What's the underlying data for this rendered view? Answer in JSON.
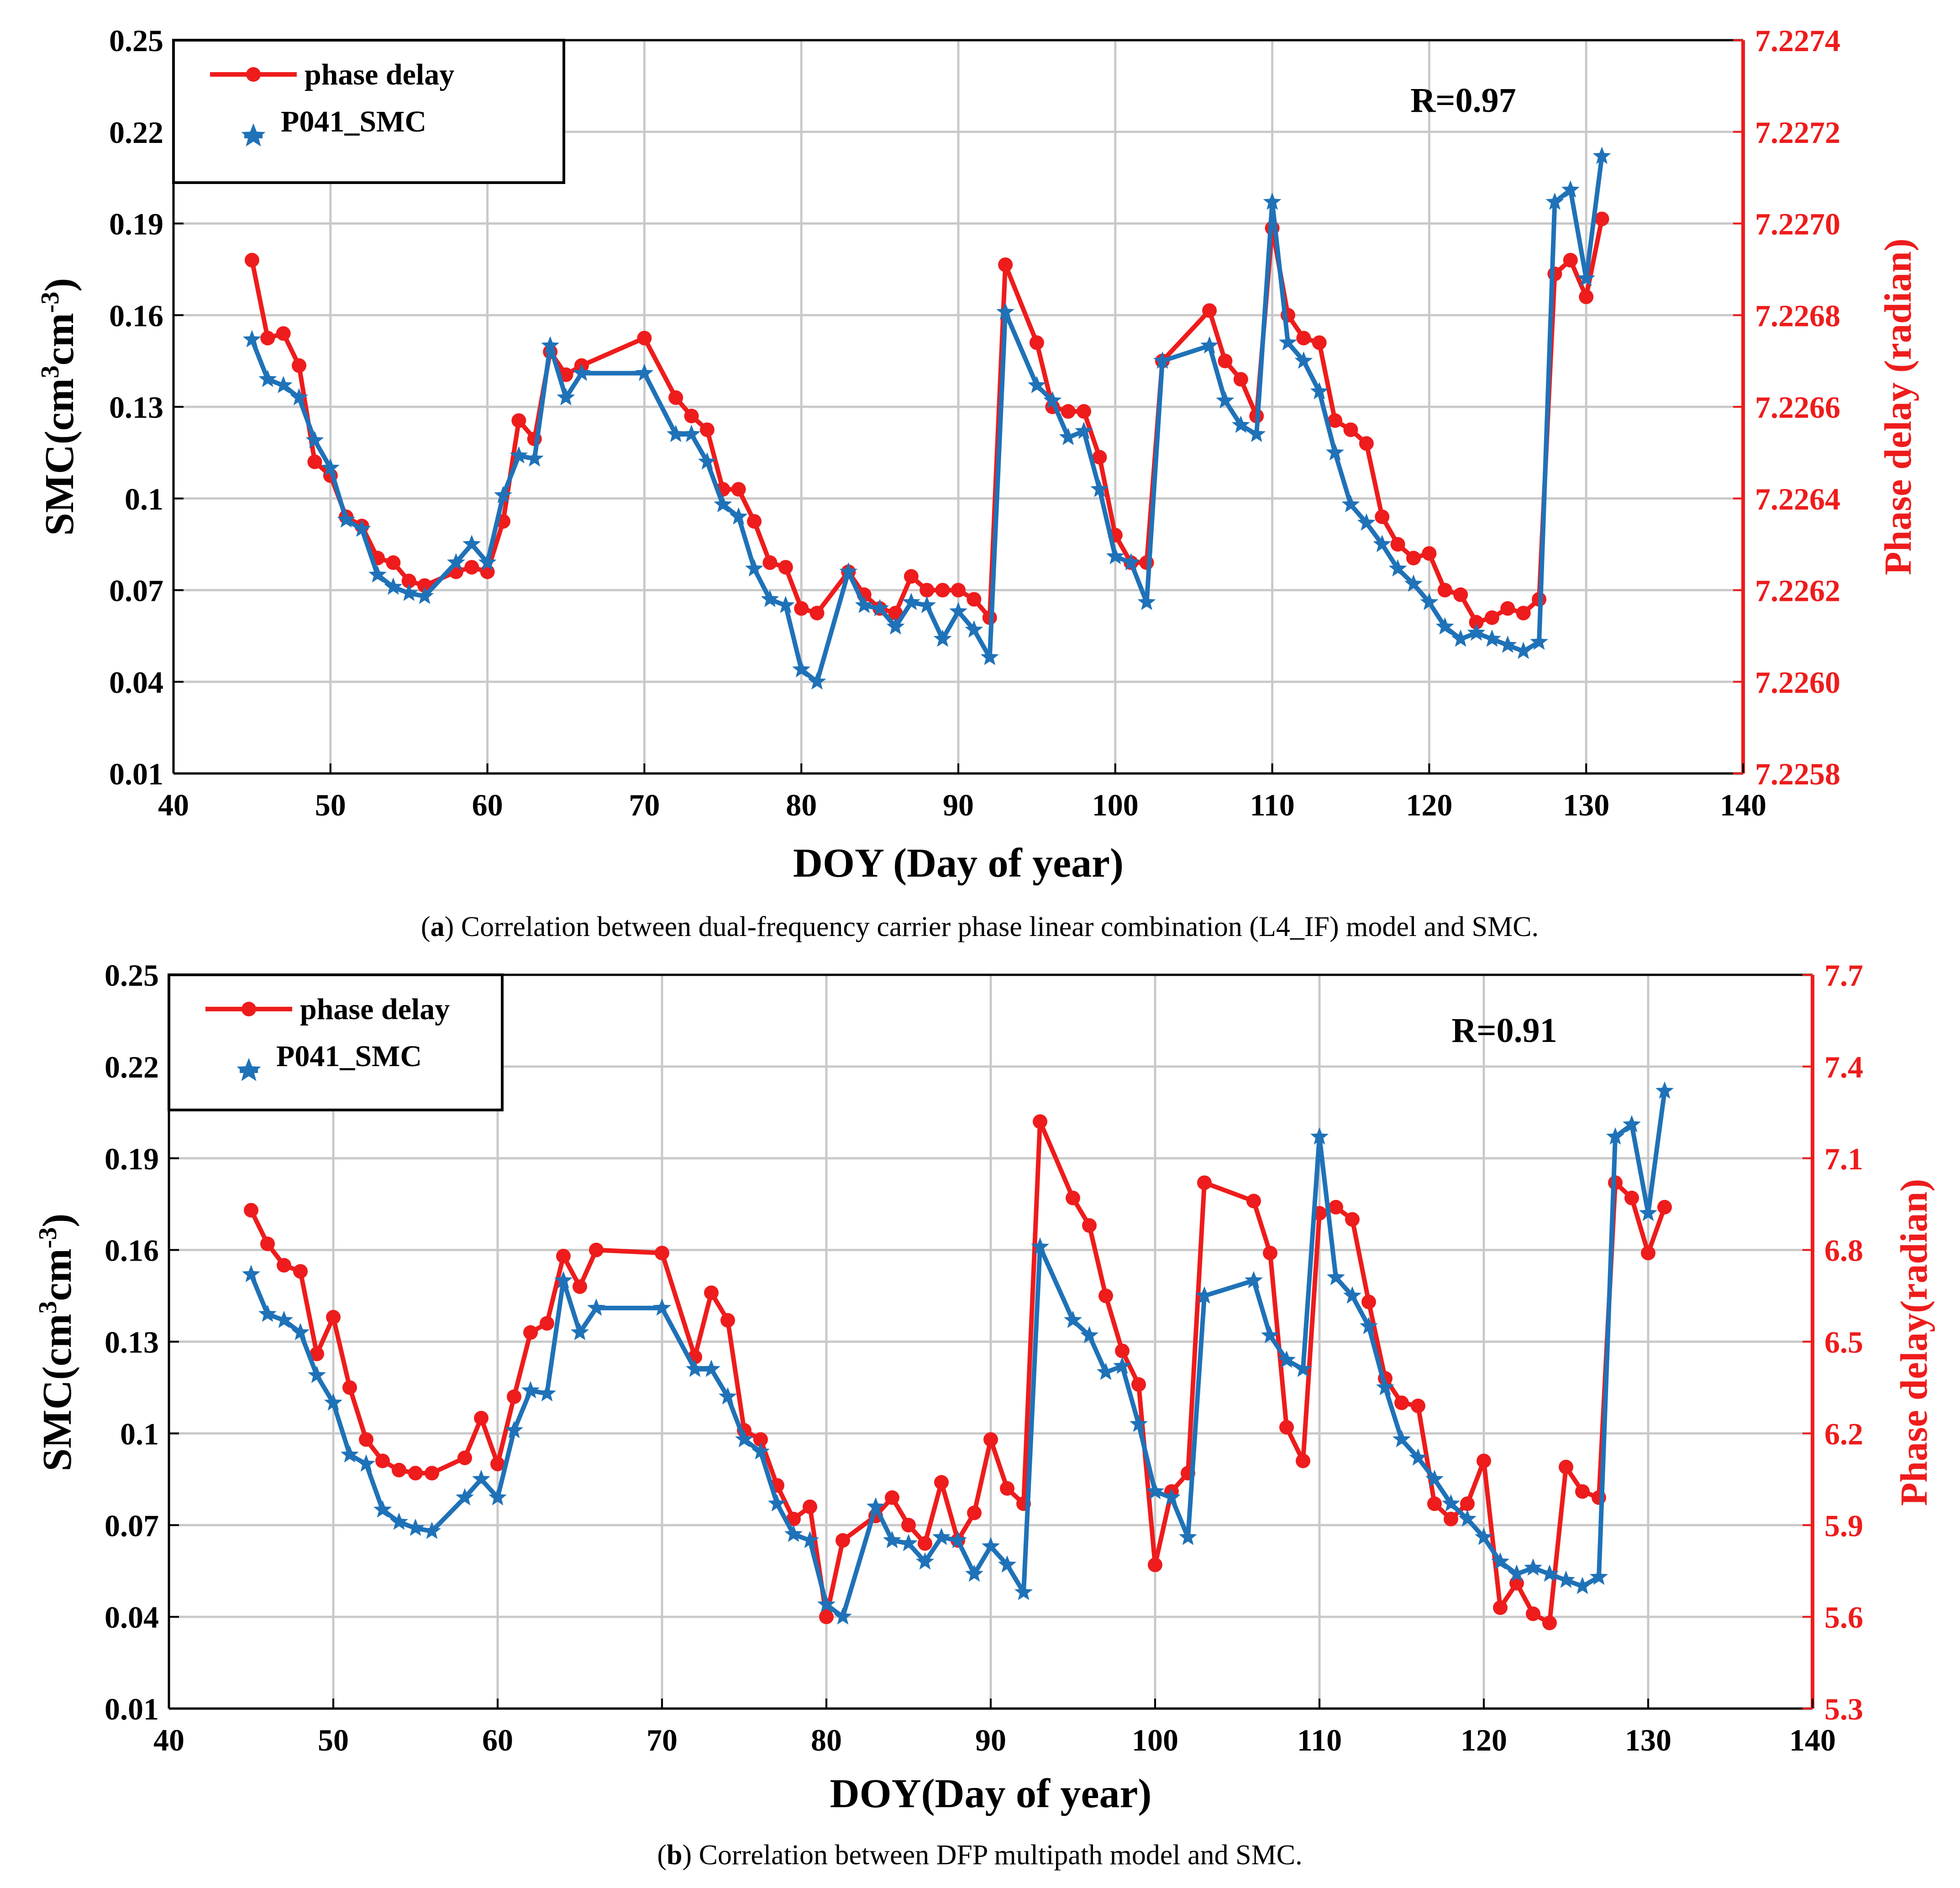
{
  "colors": {
    "red": "#ee1c1c",
    "blue": "#1f72b8",
    "grid": "#c9c9c9"
  },
  "chart_data": [
    {
      "id": "a",
      "type": "line",
      "xlabel": "DOY (Day of year)",
      "ylabel_left": "SMC(cm3cm-3)",
      "ylabel_right": "Phase delay (radian)",
      "xlim": [
        40,
        140
      ],
      "ylim_left": [
        0.01,
        0.25
      ],
      "ylim_right": [
        7.2258,
        7.2274
      ],
      "xticks": [
        "40",
        "50",
        "60",
        "70",
        "80",
        "90",
        "100",
        "110",
        "120",
        "130",
        "140"
      ],
      "yticks_left": [
        "0.01",
        "0.04",
        "0.07",
        "0.1",
        "0.13",
        "0.16",
        "0.19",
        "0.22",
        "0.25"
      ],
      "yticks_right": [
        "7.2258",
        "7.2260",
        "7.2262",
        "7.2264",
        "7.2266",
        "7.2268",
        "7.2270",
        "7.2272",
        "7.2274"
      ],
      "annotation": "R=0.97",
      "legend": {
        "position": "top-left",
        "entries": [
          "phase delay",
          "P041_SMC"
        ]
      },
      "caption": {
        "label": "a",
        "text": "Correlation between dual-frequency carrier phase linear combination (L4_IF) model and SMC."
      },
      "series": [
        {
          "name": "phase delay",
          "axis": "right",
          "color": "#ee1c1c",
          "marker": "circle",
          "x": [
            45,
            46,
            47,
            48,
            49,
            50,
            51,
            52,
            53,
            54,
            55,
            56,
            58,
            59,
            60,
            61,
            62,
            63,
            64,
            65,
            66,
            70,
            72,
            73,
            74,
            75,
            76,
            77,
            78,
            79,
            80,
            81,
            83,
            84,
            85,
            86,
            87,
            88,
            89,
            90,
            91,
            92,
            93,
            95,
            96,
            97,
            98,
            99,
            100,
            101,
            102,
            103,
            106,
            107,
            108,
            109,
            110,
            111,
            112,
            113,
            114,
            115,
            116,
            117,
            118,
            119,
            120,
            121,
            122,
            123,
            124,
            125,
            126,
            127,
            128,
            129,
            130,
            131
          ],
          "values": [
            7.22692,
            7.22675,
            7.22676,
            7.22669,
            7.22648,
            7.22645,
            7.22636,
            7.22634,
            7.22627,
            7.22626,
            7.22622,
            7.22621,
            7.22624,
            7.22625,
            7.22624,
            7.22635,
            7.22657,
            7.22653,
            7.22672,
            7.22667,
            7.22669,
            7.22675,
            7.22662,
            7.22658,
            7.22655,
            7.22642,
            7.22642,
            7.22635,
            7.22626,
            7.22625,
            7.22616,
            7.22615,
            7.22624,
            7.22619,
            7.22616,
            7.22615,
            7.22623,
            7.2262,
            7.2262,
            7.2262,
            7.22618,
            7.22614,
            7.22691,
            7.22674,
            7.2266,
            7.22659,
            7.22659,
            7.22649,
            7.22632,
            7.22626,
            7.22626,
            7.2267,
            7.22681,
            7.2267,
            7.22666,
            7.22658,
            7.22699,
            7.2268,
            7.22675,
            7.22674,
            7.22657,
            7.22655,
            7.22652,
            7.22636,
            7.2263,
            7.22627,
            7.22628,
            7.2262,
            7.22619,
            7.22613,
            7.22614,
            7.22616,
            7.22615,
            7.22618,
            7.22689,
            7.22692,
            7.22684,
            7.22701
          ]
        },
        {
          "name": "P041_SMC",
          "axis": "left",
          "color": "#1f72b8",
          "marker": "star",
          "x": [
            45,
            46,
            47,
            48,
            49,
            50,
            51,
            52,
            53,
            54,
            55,
            56,
            58,
            59,
            60,
            61,
            62,
            63,
            64,
            65,
            66,
            70,
            72,
            73,
            74,
            75,
            76,
            77,
            78,
            79,
            80,
            81,
            83,
            84,
            85,
            86,
            87,
            88,
            89,
            90,
            91,
            92,
            93,
            95,
            96,
            97,
            98,
            99,
            100,
            101,
            102,
            103,
            106,
            107,
            108,
            109,
            110,
            111,
            112,
            113,
            114,
            115,
            116,
            117,
            118,
            119,
            120,
            121,
            122,
            123,
            124,
            125,
            126,
            127,
            128,
            129,
            130,
            131
          ],
          "values": [
            0.152,
            0.139,
            0.137,
            0.133,
            0.119,
            0.11,
            0.093,
            0.09,
            0.075,
            0.071,
            0.069,
            0.068,
            0.079,
            0.085,
            0.079,
            0.101,
            0.114,
            0.113,
            0.15,
            0.133,
            0.141,
            0.141,
            0.121,
            0.121,
            0.112,
            0.098,
            0.094,
            0.077,
            0.067,
            0.065,
            0.044,
            0.04,
            0.076,
            0.065,
            0.064,
            0.058,
            0.066,
            0.065,
            0.054,
            0.063,
            0.057,
            0.048,
            0.161,
            0.137,
            0.132,
            0.12,
            0.122,
            0.103,
            0.081,
            0.079,
            0.066,
            0.145,
            0.15,
            0.132,
            0.124,
            0.121,
            0.197,
            0.151,
            0.145,
            0.135,
            0.115,
            0.098,
            0.092,
            0.085,
            0.077,
            0.072,
            0.066,
            0.058,
            0.054,
            0.056,
            0.054,
            0.052,
            0.05,
            0.053,
            0.197,
            0.201,
            0.172,
            0.212
          ]
        }
      ]
    },
    {
      "id": "b",
      "type": "line",
      "xlabel": "DOY(Day of year)",
      "ylabel_left": "SMC(cm3cm-3)",
      "ylabel_right": "Phase delay(radian)",
      "xlim": [
        40,
        140
      ],
      "ylim_left": [
        0.01,
        0.25
      ],
      "ylim_right": [
        5.3,
        7.7
      ],
      "xticks": [
        "40",
        "50",
        "60",
        "70",
        "80",
        "90",
        "100",
        "110",
        "120",
        "130",
        "140"
      ],
      "yticks_left": [
        "0.01",
        "0.04",
        "0.07",
        "0.1",
        "0.13",
        "0.16",
        "0.19",
        "0.22",
        "0.25"
      ],
      "yticks_right": [
        "5.3",
        "5.6",
        "5.9",
        "6.2",
        "6.5",
        "6.8",
        "7.1",
        "7.4",
        "7.7"
      ],
      "annotation": "R=0.91",
      "legend": {
        "position": "top-left",
        "entries": [
          "phase delay",
          "P041_SMC"
        ]
      },
      "caption": {
        "label": "b",
        "text": "Correlation between DFP multipath model and SMC."
      },
      "series": [
        {
          "name": "phase delay",
          "axis": "right",
          "color": "#ee1c1c",
          "marker": "circle",
          "x": [
            45,
            46,
            47,
            48,
            49,
            50,
            51,
            52,
            53,
            54,
            55,
            56,
            58,
            59,
            60,
            61,
            62,
            63,
            64,
            65,
            66,
            70,
            72,
            73,
            74,
            75,
            76,
            77,
            78,
            79,
            80,
            81,
            83,
            84,
            85,
            86,
            87,
            88,
            89,
            90,
            91,
            92,
            93,
            95,
            96,
            97,
            98,
            99,
            100,
            101,
            102,
            103,
            106,
            107,
            108,
            109,
            110,
            111,
            112,
            113,
            114,
            115,
            116,
            117,
            118,
            119,
            120,
            121,
            122,
            123,
            124,
            125,
            126,
            127,
            128,
            129,
            130,
            131
          ],
          "values": [
            6.93,
            6.82,
            6.75,
            6.73,
            6.46,
            6.58,
            6.35,
            6.18,
            6.11,
            6.08,
            6.07,
            6.07,
            6.12,
            6.25,
            6.1,
            6.32,
            6.53,
            6.56,
            6.78,
            6.68,
            6.8,
            6.79,
            6.45,
            6.66,
            6.57,
            6.21,
            6.18,
            6.03,
            5.92,
            5.96,
            5.6,
            5.85,
            5.93,
            5.99,
            5.9,
            5.84,
            6.04,
            5.85,
            5.94,
            6.18,
            6.02,
            5.97,
            7.22,
            6.97,
            6.88,
            6.65,
            6.47,
            6.36,
            5.77,
            6.01,
            6.07,
            7.02,
            6.96,
            6.79,
            6.22,
            6.11,
            6.92,
            6.94,
            6.9,
            6.63,
            6.38,
            6.3,
            6.29,
            5.97,
            5.92,
            5.97,
            6.11,
            5.63,
            5.71,
            5.61,
            5.58,
            6.09,
            6.01,
            5.99,
            7.02,
            6.97,
            6.79,
            6.94
          ]
        },
        {
          "name": "P041_SMC",
          "axis": "left",
          "color": "#1f72b8",
          "marker": "star",
          "x": [
            45,
            46,
            47,
            48,
            49,
            50,
            51,
            52,
            53,
            54,
            55,
            56,
            58,
            59,
            60,
            61,
            62,
            63,
            64,
            65,
            66,
            70,
            72,
            73,
            74,
            75,
            76,
            77,
            78,
            79,
            80,
            81,
            83,
            84,
            85,
            86,
            87,
            88,
            89,
            90,
            91,
            92,
            93,
            95,
            96,
            97,
            98,
            99,
            100,
            101,
            102,
            103,
            106,
            107,
            108,
            109,
            110,
            111,
            112,
            113,
            114,
            115,
            116,
            117,
            118,
            119,
            120,
            121,
            122,
            123,
            124,
            125,
            126,
            127,
            128,
            129,
            130,
            131
          ],
          "values": [
            0.152,
            0.139,
            0.137,
            0.133,
            0.119,
            0.11,
            0.093,
            0.09,
            0.075,
            0.071,
            0.069,
            0.068,
            0.079,
            0.085,
            0.079,
            0.101,
            0.114,
            0.113,
            0.15,
            0.133,
            0.141,
            0.141,
            0.121,
            0.121,
            0.112,
            0.098,
            0.094,
            0.077,
            0.067,
            0.065,
            0.044,
            0.04,
            0.076,
            0.065,
            0.064,
            0.058,
            0.066,
            0.065,
            0.054,
            0.063,
            0.057,
            0.048,
            0.161,
            0.137,
            0.132,
            0.12,
            0.122,
            0.103,
            0.081,
            0.079,
            0.066,
            0.145,
            0.15,
            0.132,
            0.124,
            0.121,
            0.197,
            0.151,
            0.145,
            0.135,
            0.115,
            0.098,
            0.092,
            0.085,
            0.077,
            0.072,
            0.066,
            0.058,
            0.054,
            0.056,
            0.054,
            0.052,
            0.05,
            0.053,
            0.197,
            0.201,
            0.172,
            0.212
          ]
        }
      ]
    }
  ]
}
